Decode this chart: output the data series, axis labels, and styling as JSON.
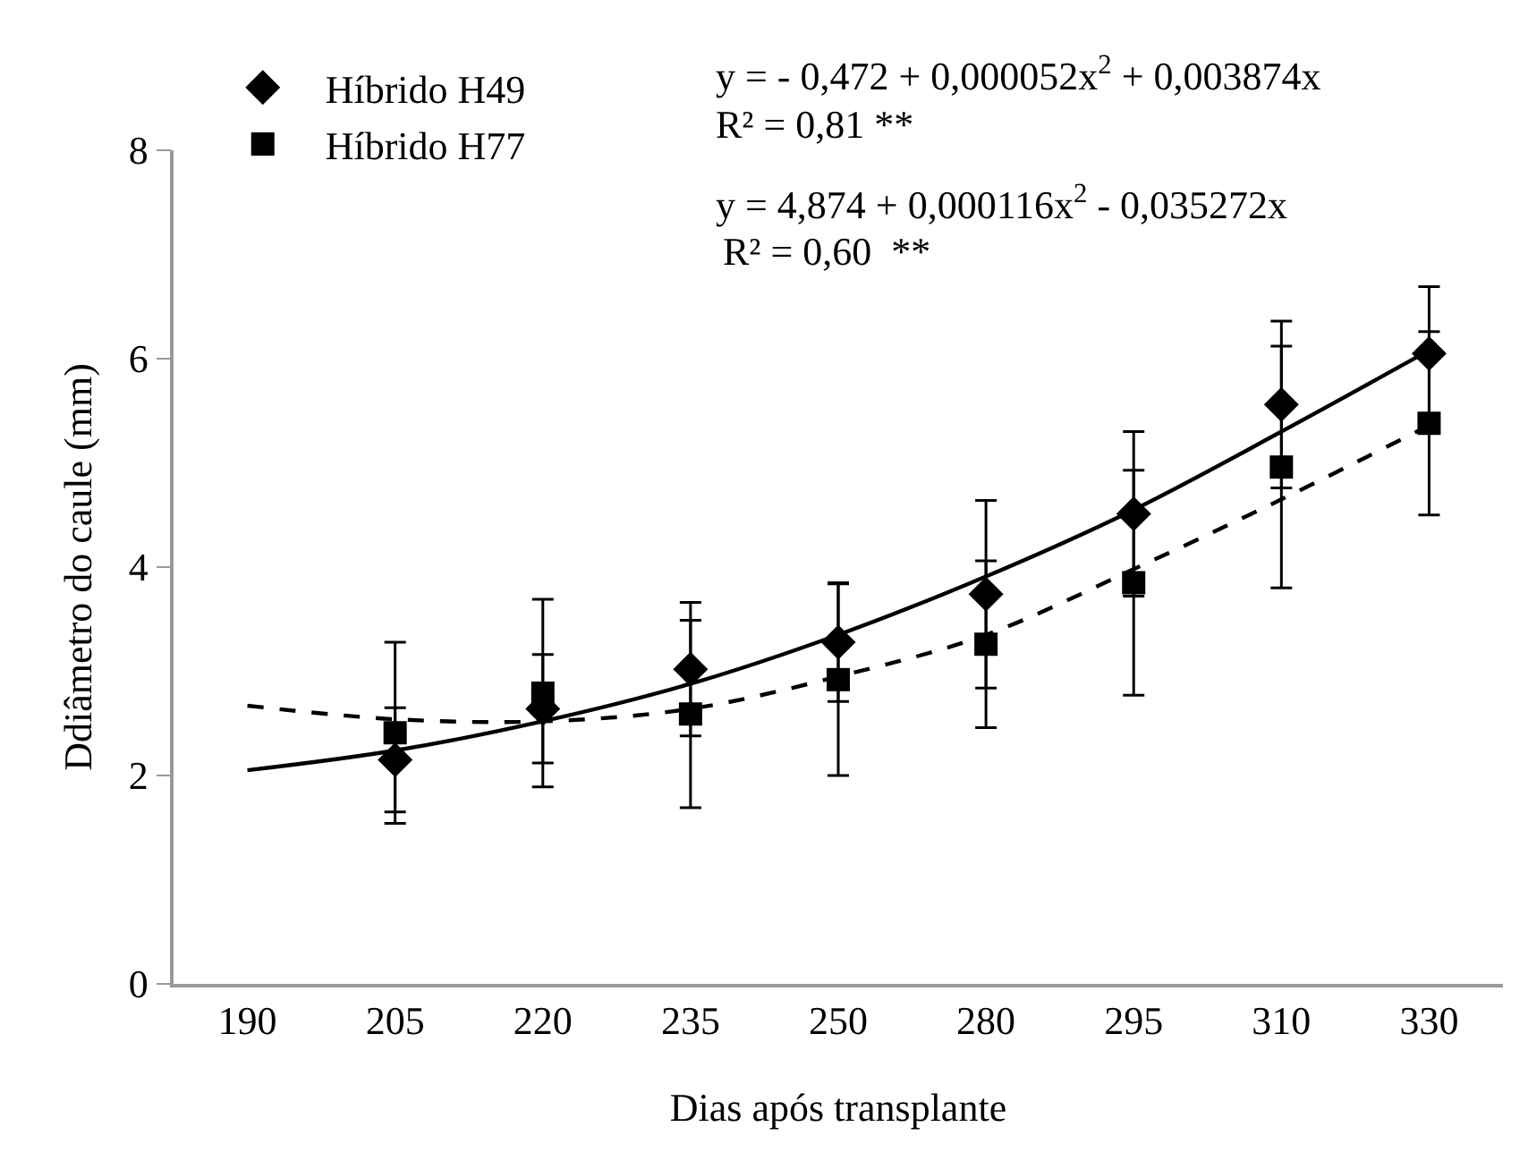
{
  "chart_data": {
    "type": "scatter",
    "xlabel": "Dias após transplante",
    "ylabel": "Ddiâmetro do caule (mm)",
    "categories": [
      "190",
      "205",
      "220",
      "235",
      "250",
      "280",
      "295",
      "310",
      "330"
    ],
    "ylim": [
      0,
      8
    ],
    "yticks": [
      0,
      2,
      4,
      6,
      8
    ],
    "grid": false,
    "legend": "top left",
    "series": [
      {
        "name": "Híbrido H49",
        "marker": "diamond",
        "color": "#000000",
        "values": [
          null,
          2.15,
          2.64,
          3.02,
          3.28,
          3.74,
          4.51,
          5.56,
          6.05
        ],
        "errors": [
          null,
          0.5,
          0.52,
          0.64,
          0.57,
          0.9,
          0.79,
          0.8,
          0.64
        ]
      },
      {
        "name": "Híbrido H77",
        "marker": "square",
        "color": "#000000",
        "values": [
          null,
          2.41,
          2.79,
          2.59,
          2.92,
          3.26,
          3.85,
          4.96,
          5.38
        ],
        "errors": [
          null,
          0.87,
          0.9,
          0.9,
          0.92,
          0.8,
          1.08,
          1.16,
          0.88
        ]
      },
      {
        "type": "line",
        "marker": "none",
        "line_style": "solid",
        "color": "#000000",
        "values": [
          2.05,
          2.24,
          2.52,
          2.88,
          3.35,
          3.91,
          4.55,
          5.3,
          6.08
        ]
      },
      {
        "type": "line",
        "marker": "none",
        "line_style": "dashed",
        "color": "#000000",
        "values": [
          2.67,
          2.54,
          2.52,
          2.64,
          2.95,
          3.35,
          3.98,
          4.65,
          5.36
        ]
      }
    ],
    "annotations": [
      "y = - 0,472 + 0,000052x$^{2}$ + 0,003874x",
      "R² = 0,81 **",
      "y = 4,874 + 0,000116x$^{2}$ - 0,035272x",
      "R² = 0,60  **"
    ]
  }
}
